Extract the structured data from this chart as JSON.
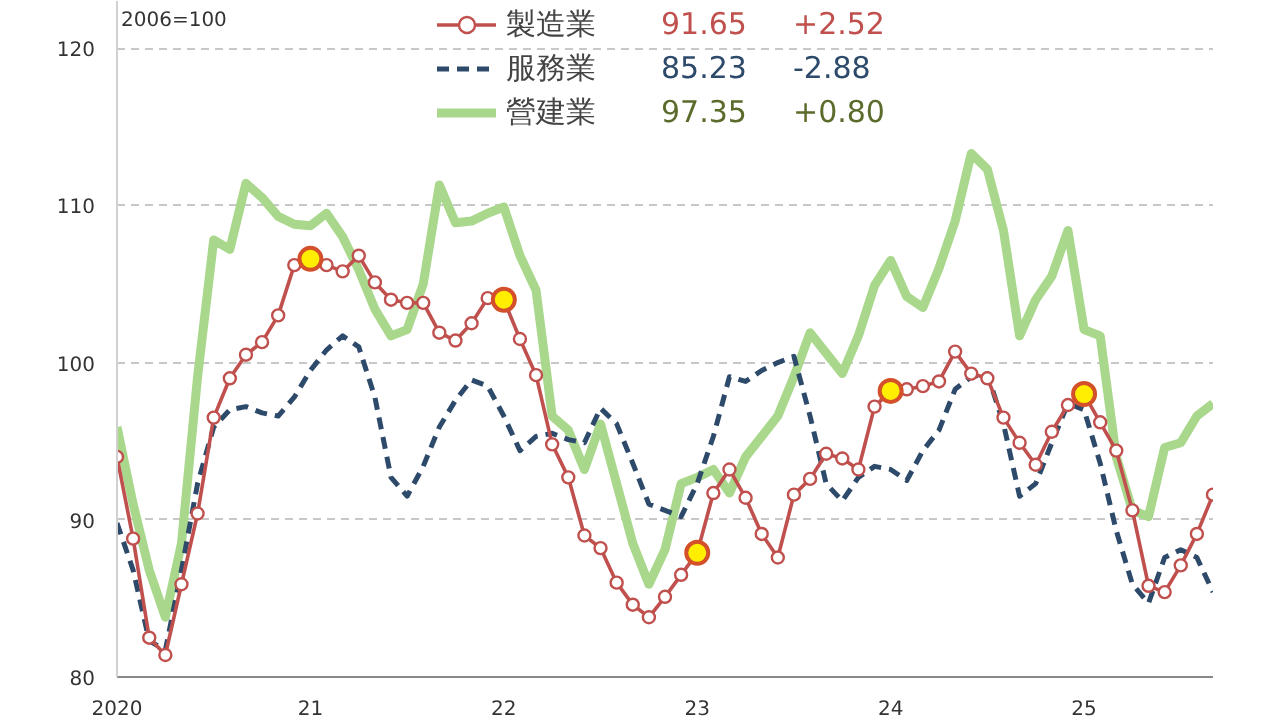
{
  "chart_data": {
    "type": "line",
    "ylabel": "2006=100",
    "x": [
      "2020-01",
      "2020-02",
      "2020-03",
      "2020-04",
      "2020-05",
      "2020-06",
      "2020-07",
      "2020-08",
      "2020-09",
      "2020-10",
      "2020-11",
      "2020-12",
      "2021-01",
      "2021-02",
      "2021-03",
      "2021-04",
      "2021-05",
      "2021-06",
      "2021-07",
      "2021-08",
      "2021-09",
      "2021-10",
      "2021-11",
      "2021-12",
      "2022-01",
      "2022-02",
      "2022-03",
      "2022-04",
      "2022-05",
      "2022-06",
      "2022-07",
      "2022-08",
      "2022-09",
      "2022-10",
      "2022-11",
      "2022-12",
      "2023-01",
      "2023-02",
      "2023-03",
      "2023-04",
      "2023-05",
      "2023-06",
      "2023-07",
      "2023-08",
      "2023-09",
      "2023-10",
      "2023-11",
      "2023-12",
      "2024-01",
      "2024-02",
      "2024-03",
      "2024-04",
      "2024-05",
      "2024-06",
      "2024-07",
      "2024-08",
      "2024-09",
      "2024-10",
      "2024-11",
      "2024-12",
      "2025-01",
      "2025-02",
      "2025-03",
      "2025-04",
      "2025-05",
      "2025-06",
      "2025-07",
      "2025-08",
      "2025-09"
    ],
    "series": [
      {
        "name": "製造業",
        "color": "#c0504d",
        "line_style": "solid",
        "marker": "circle",
        "values": [
          94.0,
          88.8,
          82.5,
          81.4,
          85.9,
          90.4,
          96.5,
          99.0,
          100.5,
          101.3,
          103.0,
          106.2,
          106.6,
          106.2,
          105.8,
          106.8,
          105.1,
          104.0,
          103.8,
          103.8,
          101.9,
          101.4,
          102.5,
          104.1,
          104.0,
          101.5,
          99.2,
          94.8,
          92.7,
          89.0,
          88.2,
          86.0,
          84.6,
          83.8,
          85.1,
          86.5,
          87.9,
          91.7,
          93.2,
          91.4,
          89.1,
          87.6,
          91.6,
          92.6,
          94.2,
          93.9,
          93.2,
          97.2,
          98.2,
          98.3,
          98.5,
          98.8,
          100.7,
          99.3,
          99.0,
          96.5,
          94.9,
          93.5,
          95.6,
          97.3,
          98.0,
          96.2,
          94.4,
          90.6,
          85.8,
          85.4,
          87.1,
          89.1,
          91.6
        ]
      },
      {
        "name": "服務業",
        "color": "#2e4a6b",
        "line_style": "dashed",
        "marker": "none",
        "values": [
          89.8,
          86.8,
          82.3,
          81.7,
          86.8,
          92.3,
          95.9,
          97.0,
          97.2,
          96.8,
          96.6,
          97.8,
          99.5,
          100.8,
          101.7,
          101.0,
          97.8,
          92.7,
          91.5,
          93.4,
          95.9,
          97.6,
          98.9,
          98.5,
          96.6,
          94.4,
          95.3,
          95.5,
          95.1,
          94.9,
          97.1,
          96.1,
          93.6,
          91.0,
          90.6,
          90.2,
          92.3,
          95.3,
          99.1,
          98.8,
          99.5,
          100.0,
          100.4,
          96.6,
          92.3,
          91.2,
          92.7,
          93.4,
          93.2,
          92.5,
          94.4,
          95.7,
          98.3,
          99.1,
          99.3,
          96.1,
          91.5,
          92.3,
          94.9,
          97.4,
          97.0,
          93.6,
          89.3,
          85.9,
          84.7,
          87.6,
          88.1,
          87.6,
          85.4
        ]
      },
      {
        "name": "營建業",
        "color": "#a9d88c",
        "line_style": "solid",
        "marker": "none",
        "values": [
          95.9,
          91.0,
          86.8,
          83.8,
          88.5,
          99.1,
          107.8,
          107.2,
          111.4,
          110.5,
          109.3,
          108.8,
          108.7,
          109.5,
          108.0,
          105.9,
          103.4,
          101.7,
          102.1,
          105.0,
          111.3,
          108.9,
          109.0,
          109.5,
          109.9,
          106.8,
          104.6,
          96.6,
          95.7,
          93.2,
          96.1,
          92.3,
          88.5,
          85.9,
          88.1,
          92.3,
          92.7,
          93.2,
          91.7,
          94.0,
          95.3,
          96.6,
          99.1,
          101.9,
          100.6,
          99.3,
          101.7,
          104.9,
          106.5,
          104.2,
          103.5,
          106.0,
          109.0,
          113.3,
          112.3,
          108.4,
          101.7,
          104.0,
          105.5,
          108.4,
          102.1,
          101.7,
          94.0,
          90.6,
          90.2,
          94.6,
          94.9,
          96.6,
          97.4
        ]
      },
      {
        "type": "scatter",
        "color": "#ffee00",
        "marker": "circle",
        "x": [
          "2021-01",
          "2022-01",
          "2023-01",
          "2024-01",
          "2025-01"
        ],
        "values": [
          106.6,
          104.0,
          87.9,
          98.2,
          98.0
        ]
      }
    ],
    "annotations": [
      "91.65",
      "+2.52",
      "85.23",
      "-2.88",
      "97.35",
      "+0.80"
    ],
    "xlim": [
      "2020-01",
      "2025-09"
    ],
    "xticks": [
      "2020",
      {
        "value": "2021",
        "label": "21"
      },
      {
        "value": "2022",
        "label": "22"
      },
      {
        "value": "2023",
        "label": "23"
      },
      {
        "value": "2024",
        "label": "24"
      },
      {
        "value": "2025",
        "label": "25"
      }
    ],
    "ylim": [
      80,
      123
    ],
    "yticks": [
      80,
      90,
      100,
      110,
      120
    ],
    "grid": "y",
    "legend": "top"
  }
}
